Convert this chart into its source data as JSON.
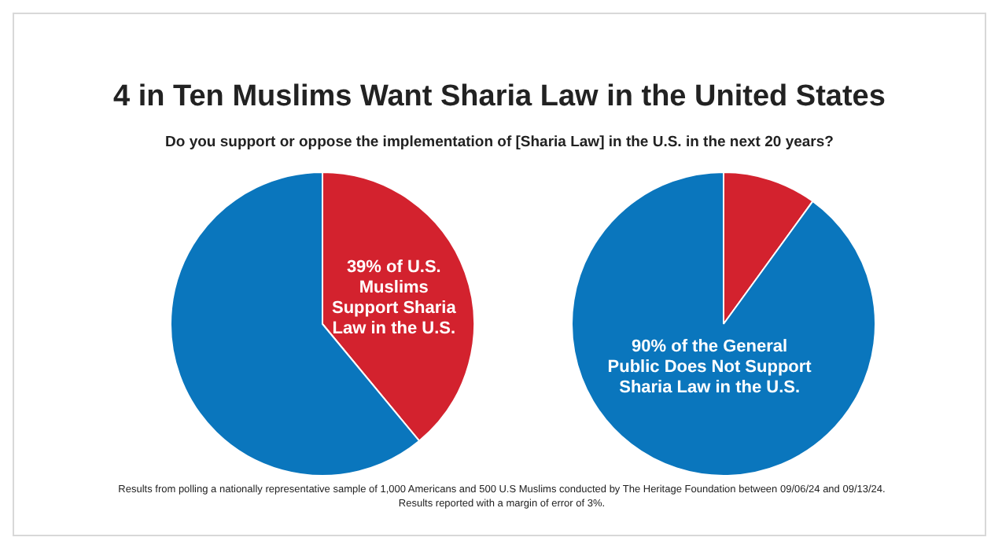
{
  "chart_data": [
    {
      "type": "pie",
      "title": "4 in Ten Muslims Want Sharia Law in the United States",
      "subtitle": "Do you support or oppose the implementation of [Sharia Law] in the U.S. in the next 20 years?",
      "categories": [
        null,
        null
      ],
      "values": [
        39,
        61
      ],
      "colors": [
        "#d3222e",
        "#0a76bd"
      ],
      "value_labels": [
        "39% of U.S. Muslims Support Sharia Law in the U.S.",
        null
      ],
      "legend": false,
      "annotations": [
        "Results from polling a nationally representative sample of 1,000 Americans and 500 U.S Muslims conducted by The Heritage Foundation between 09/06/24 and 09/13/24. Results reported with a margin of error of 3%."
      ]
    },
    {
      "type": "pie",
      "categories": [
        null,
        null
      ],
      "values": [
        10,
        90
      ],
      "colors": [
        "#d3222e",
        "#0a76bd"
      ],
      "value_labels": [
        null,
        "90% of the General Public Does Not Support Sharia Law in the U.S."
      ],
      "legend": false
    }
  ]
}
